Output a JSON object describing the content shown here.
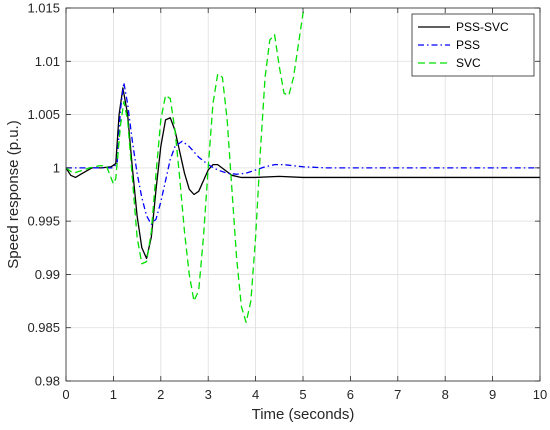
{
  "chart_data": {
    "type": "line",
    "title": "",
    "xlabel": "Time (seconds)",
    "ylabel": "Speed response (p.u.)",
    "xlim": [
      0,
      10
    ],
    "ylim": [
      0.98,
      1.015
    ],
    "x_ticks": [
      0,
      1,
      2,
      3,
      4,
      5,
      6,
      7,
      8,
      9,
      10
    ],
    "x_tick_labels": [
      "0",
      "1",
      "2",
      "3",
      "4",
      "5",
      "6",
      "7",
      "8",
      "9",
      "10"
    ],
    "y_ticks": [
      0.98,
      0.985,
      0.99,
      0.995,
      1.0,
      1.005,
      1.01,
      1.015
    ],
    "y_tick_labels": [
      "0.98",
      "0.985",
      "0.99",
      "0.995",
      "1",
      "1.005",
      "1.01",
      "1.015"
    ],
    "grid": true,
    "legend_position": "top-right",
    "series": [
      {
        "name": "PSS-SVC",
        "color": "#000000",
        "dash": "solid",
        "x": [
          0,
          0.1,
          0.2,
          0.35,
          0.55,
          0.75,
          0.95,
          1.05,
          1.12,
          1.2,
          1.3,
          1.4,
          1.5,
          1.6,
          1.7,
          1.8,
          1.9,
          2.0,
          2.1,
          2.2,
          2.3,
          2.4,
          2.5,
          2.6,
          2.7,
          2.8,
          2.9,
          3.0,
          3.1,
          3.2,
          3.35,
          3.5,
          3.7,
          4.0,
          4.5,
          5.0,
          6.0,
          7.0,
          8.0,
          9.0,
          10.0
        ],
        "y": [
          1.0,
          0.9993,
          0.9991,
          0.9995,
          1.0,
          1.0,
          1.0001,
          1.0004,
          1.005,
          1.0075,
          1.005,
          1.0,
          0.9955,
          0.9925,
          0.9915,
          0.9935,
          0.998,
          1.002,
          1.0045,
          1.0047,
          1.0035,
          1.0015,
          0.9995,
          0.998,
          0.9975,
          0.9978,
          0.9988,
          0.9998,
          1.0003,
          1.0003,
          0.9998,
          0.9993,
          0.9991,
          0.9991,
          0.9992,
          0.9991,
          0.9991,
          0.9991,
          0.9991,
          0.9991,
          0.9991
        ]
      },
      {
        "name": "PSS",
        "color": "#0000ff",
        "dash": "dashdot",
        "x": [
          0,
          0.5,
          1.0,
          1.08,
          1.15,
          1.22,
          1.3,
          1.4,
          1.5,
          1.6,
          1.7,
          1.8,
          1.9,
          2.0,
          2.1,
          2.2,
          2.3,
          2.45,
          2.6,
          2.8,
          3.0,
          3.2,
          3.4,
          3.6,
          3.8,
          4.0,
          4.2,
          4.4,
          4.6,
          4.8,
          5.0,
          5.5,
          6.0,
          7.0,
          8.0,
          9.0,
          10.0
        ],
        "y": [
          1.0,
          1.0,
          1.0,
          1.0005,
          1.0055,
          1.008,
          1.006,
          1.0025,
          0.9995,
          0.9972,
          0.9955,
          0.9947,
          0.9952,
          0.9968,
          0.9988,
          1.0008,
          1.002,
          1.0025,
          1.002,
          1.001,
          1.0003,
          0.9998,
          0.9995,
          0.9994,
          0.9995,
          0.9998,
          1.0001,
          1.0003,
          1.0003,
          1.0002,
          1.0001,
          1.0,
          1.0,
          1.0,
          1.0,
          1.0,
          1.0
        ]
      },
      {
        "name": "SVC",
        "color": "#00e000",
        "dash": "dashed",
        "x": [
          0,
          0.15,
          0.3,
          0.5,
          0.7,
          0.85,
          1.0,
          1.05,
          1.15,
          1.22,
          1.3,
          1.4,
          1.5,
          1.6,
          1.7,
          1.8,
          1.9,
          2.0,
          2.1,
          2.2,
          2.3,
          2.4,
          2.5,
          2.6,
          2.7,
          2.8,
          2.9,
          3.0,
          3.1,
          3.2,
          3.3,
          3.4,
          3.5,
          3.6,
          3.7,
          3.8,
          3.9,
          4.0,
          4.1,
          4.2,
          4.3,
          4.4,
          4.5,
          4.6,
          4.7,
          4.8,
          4.9,
          5.0,
          5.1,
          5.2
        ],
        "y": [
          1.0,
          0.9995,
          0.9997,
          1.0,
          1.0002,
          1.0002,
          0.9985,
          0.999,
          1.004,
          1.0062,
          1.0045,
          0.999,
          0.9935,
          0.991,
          0.9912,
          0.994,
          0.9995,
          1.0045,
          1.0068,
          1.0065,
          1.0035,
          0.999,
          0.994,
          0.99,
          0.9875,
          0.9885,
          0.9935,
          1.0,
          1.006,
          1.0088,
          1.0085,
          1.0045,
          0.998,
          0.9915,
          0.987,
          0.9855,
          0.9875,
          0.9935,
          1.0015,
          1.0085,
          1.012,
          1.0125,
          1.0095,
          1.007,
          1.0068,
          1.0085,
          1.0115,
          1.0145,
          1.0158,
          1.017
        ]
      }
    ]
  }
}
